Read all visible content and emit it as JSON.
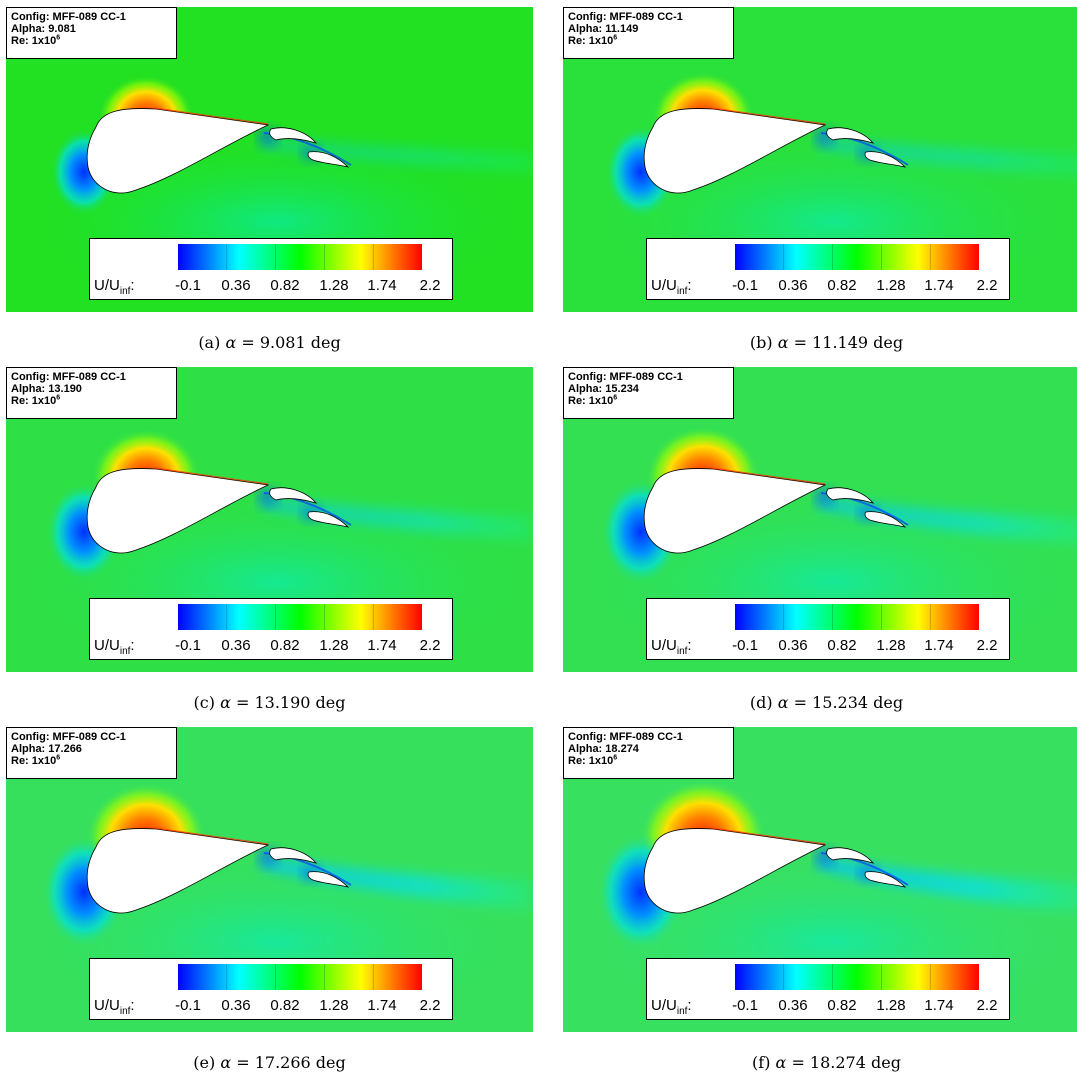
{
  "figure": {
    "common": {
      "config_label": "Config: MFF-089 CC-1",
      "alpha_prefix": "Alpha: ",
      "re_prefix": "Re: 1x10",
      "re_exponent": "6",
      "legend_quantity": "U/U",
      "legend_subscript": "inf",
      "legend_suffix": ":",
      "colorbar_ticks": [
        "-0.1",
        "0.36",
        "0.82",
        "1.28",
        "1.74",
        "2.2"
      ],
      "colorbar_colors": [
        "#0000ff",
        "#00ffff",
        "#00ff00",
        "#ffff00",
        "#ff0000"
      ]
    },
    "panels": [
      {
        "alpha": "9.081",
        "caption_label": "(a)",
        "caption_value": "= 9.081 deg"
      },
      {
        "alpha": "11.149",
        "caption_label": "(b)",
        "caption_value": "= 11.149 deg"
      },
      {
        "alpha": "13.190",
        "caption_label": "(c)",
        "caption_value": "= 13.190 deg"
      },
      {
        "alpha": "15.234",
        "caption_label": "(d)",
        "caption_value": "= 15.234 deg"
      },
      {
        "alpha": "17.266",
        "caption_label": "(e)",
        "caption_value": "= 17.266 deg"
      },
      {
        "alpha": "18.274",
        "caption_label": "(f)",
        "caption_value": "= 18.274 deg"
      }
    ]
  }
}
